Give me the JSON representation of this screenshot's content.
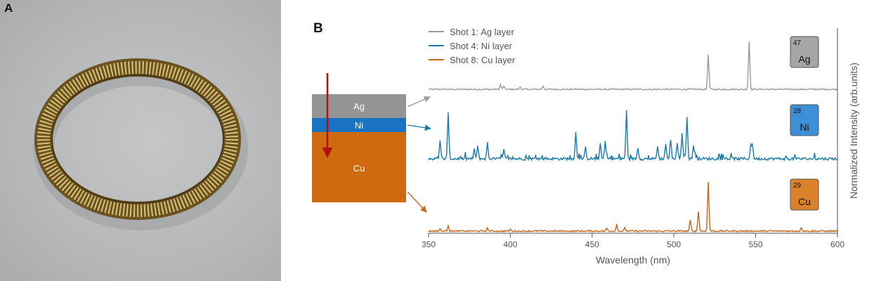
{
  "panel_labels": {
    "a": "A",
    "b": "B"
  },
  "photo": {
    "subject": "coiled-wire-ring-icon"
  },
  "layers": [
    {
      "name": "Ag",
      "color": "#959595"
    },
    {
      "name": "Ni",
      "color": "#1a72c4"
    },
    {
      "name": "Cu",
      "color": "#cf6a10"
    }
  ],
  "badges": [
    {
      "number": "47",
      "symbol": "Ag",
      "color": "#a6a6a6"
    },
    {
      "number": "28",
      "symbol": "Ni",
      "color": "#3d8fd6"
    },
    {
      "number": "29",
      "symbol": "Cu",
      "color": "#d9822b"
    }
  ],
  "arrow_color": "#b01010",
  "chart_data": {
    "type": "line",
    "xlabel": "Wavelength (nm)",
    "ylabel": "Normalized Intensity (arb.units)",
    "xlim": [
      350,
      600
    ],
    "x_ticks": [
      350,
      400,
      450,
      500,
      550,
      600
    ],
    "grid": false,
    "legend_position": "top-left",
    "series": [
      {
        "name": "Shot 1: Ag layer",
        "color": "#9a9a9a",
        "peaks": [
          [
            394,
            0.09
          ],
          [
            396,
            0.07
          ],
          [
            406,
            0.05
          ],
          [
            420,
            0.07
          ],
          [
            521,
            0.72
          ],
          [
            546,
            1.0
          ]
        ]
      },
      {
        "name": "Shot 4: Ni layer",
        "color": "#1b7aa8",
        "peaks": [
          [
            357,
            0.38
          ],
          [
            362,
            0.95
          ],
          [
            378,
            0.2
          ],
          [
            380,
            0.26
          ],
          [
            386,
            0.33
          ],
          [
            396,
            0.18
          ],
          [
            440,
            0.56
          ],
          [
            446,
            0.24
          ],
          [
            455,
            0.32
          ],
          [
            458,
            0.36
          ],
          [
            471,
            1.0
          ],
          [
            478,
            0.24
          ],
          [
            490,
            0.28
          ],
          [
            495,
            0.32
          ],
          [
            498,
            0.42
          ],
          [
            502,
            0.34
          ],
          [
            505,
            0.55
          ],
          [
            508,
            0.88
          ],
          [
            512,
            0.3
          ],
          [
            547,
            0.28
          ],
          [
            548,
            0.3
          ]
        ]
      },
      {
        "name": "Shot 8: Cu layer",
        "color": "#c8661a",
        "peaks": [
          [
            357,
            0.05
          ],
          [
            362,
            0.12
          ],
          [
            386,
            0.06
          ],
          [
            400,
            0.04
          ],
          [
            459,
            0.06
          ],
          [
            465,
            0.14
          ],
          [
            470,
            0.06
          ],
          [
            510,
            0.22
          ],
          [
            515,
            0.41
          ],
          [
            521,
            1.0
          ],
          [
            578,
            0.08
          ]
        ]
      }
    ]
  }
}
